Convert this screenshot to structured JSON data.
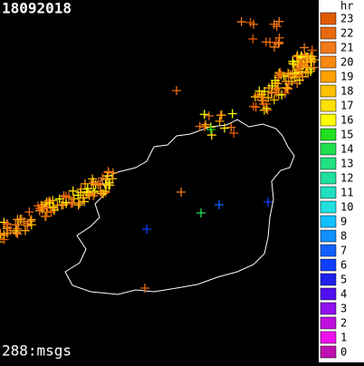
{
  "title": "18092018",
  "footer": "288:msgs",
  "legend": {
    "title": "hr",
    "items": [
      {
        "label": "23",
        "color": "#e05a00"
      },
      {
        "label": "22",
        "color": "#e86a10"
      },
      {
        "label": "21",
        "color": "#f07a18"
      },
      {
        "label": "20",
        "color": "#f88a10"
      },
      {
        "label": "19",
        "color": "#ffa000"
      },
      {
        "label": "18",
        "color": "#ffc000"
      },
      {
        "label": "17",
        "color": "#ffe000"
      },
      {
        "label": "16",
        "color": "#ffff00"
      },
      {
        "label": "15",
        "color": "#20e020"
      },
      {
        "label": "14",
        "color": "#20e050"
      },
      {
        "label": "13",
        "color": "#20e080"
      },
      {
        "label": "12",
        "color": "#20e0a0"
      },
      {
        "label": "11",
        "color": "#20e0c0"
      },
      {
        "label": "10",
        "color": "#20e0e0"
      },
      {
        "label": "9",
        "color": "#10c0ff"
      },
      {
        "label": "8",
        "color": "#1090ff"
      },
      {
        "label": "7",
        "color": "#1060ff"
      },
      {
        "label": "6",
        "color": "#1040ff"
      },
      {
        "label": "5",
        "color": "#2020f0"
      },
      {
        "label": "4",
        "color": "#5010f0"
      },
      {
        "label": "3",
        "color": "#9010f0"
      },
      {
        "label": "2",
        "color": "#c010e0"
      },
      {
        "label": "1",
        "color": "#f010f0"
      },
      {
        "label": "0",
        "color": "#c010b0"
      }
    ]
  }
}
